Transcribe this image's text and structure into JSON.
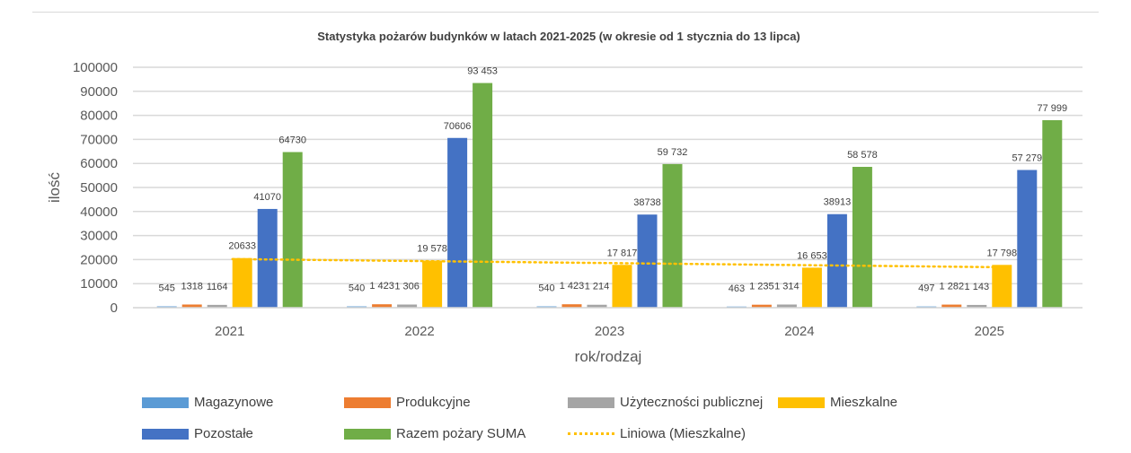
{
  "chart_data": {
    "type": "bar",
    "title": "Statystyka pożarów budynków w latach 2021-2025 (w okresie od 1 stycznia do 13 lipca)",
    "xlabel": "rok/rodzaj",
    "ylabel": "ilość",
    "ylim": [
      0,
      100000
    ],
    "yticks": [
      "0",
      "10000",
      "20000",
      "30000",
      "40000",
      "50000",
      "60000",
      "70000",
      "80000",
      "90000",
      "100000"
    ],
    "grid": true,
    "legend_placement": "bottom",
    "categories": [
      "2021",
      "2022",
      "2023",
      "2024",
      "2025"
    ],
    "series": [
      {
        "name": "Magazynowe",
        "color": "#5b9bd5",
        "values": [
          545,
          540,
          540,
          463,
          497
        ],
        "labels": [
          "545",
          "540",
          "540",
          "463",
          "497"
        ]
      },
      {
        "name": "Produkcyjne",
        "color": "#ed7d31",
        "values": [
          1318,
          1423,
          1423,
          1235,
          1282
        ],
        "labels": [
          "1318",
          "1 423",
          "1 423",
          "1 235",
          "1 282"
        ]
      },
      {
        "name": "Użyteczności publicznej",
        "color": "#a5a5a5",
        "values": [
          1164,
          1306,
          1214,
          1314,
          1143
        ],
        "labels": [
          "1164",
          "1 306",
          "1 214",
          "1 314",
          "1 143"
        ]
      },
      {
        "name": "Mieszkalne",
        "color": "#ffc000",
        "values": [
          20633,
          19578,
          17817,
          16653,
          17798
        ],
        "labels": [
          "20633",
          "19 578",
          "17 817",
          "16 653",
          "17 798"
        ]
      },
      {
        "name": "Pozostałe",
        "color": "#4472c4",
        "values": [
          41070,
          70606,
          38738,
          38913,
          57279
        ],
        "labels": [
          "41070",
          "70606",
          "38738",
          "38913",
          "57 279"
        ]
      },
      {
        "name": "Razem pożary SUMA",
        "color": "#70ad47",
        "values": [
          64730,
          93453,
          59732,
          58578,
          77999
        ],
        "labels": [
          "64730",
          "93 453",
          "59 732",
          "58 578",
          "77 999"
        ]
      }
    ],
    "trendline": {
      "name": "Liniowa (Mieszkalne)",
      "series": "Mieszkalne",
      "type": "linear",
      "color": "#ffc000",
      "style": "dotted"
    }
  }
}
